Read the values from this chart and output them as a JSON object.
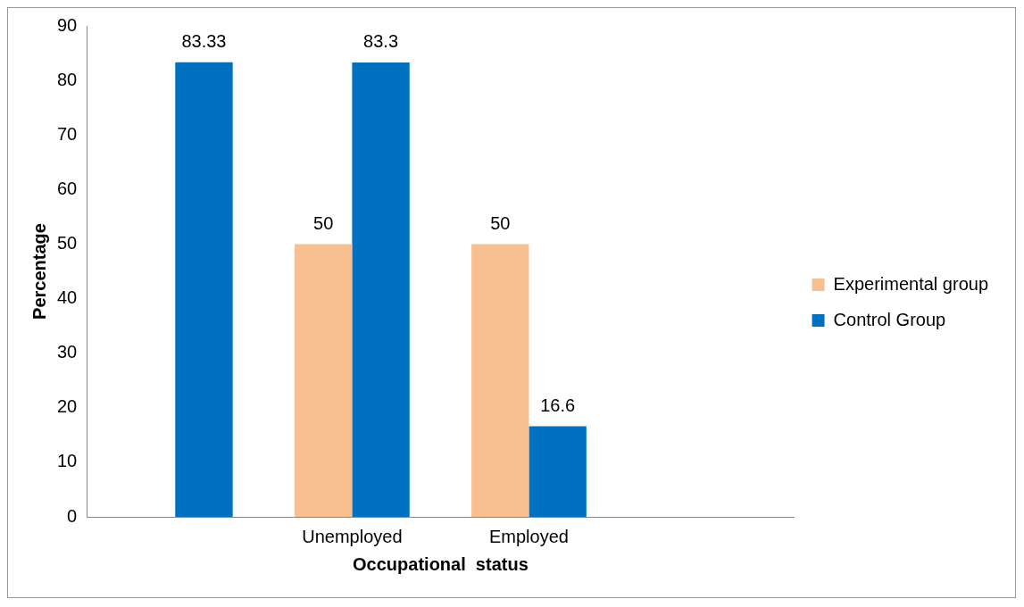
{
  "chart_data": {
    "type": "bar",
    "xlabel": "Occupational  status",
    "ylabel": "Percentage",
    "categories": [
      null,
      "Unemployed",
      "Employed",
      null
    ],
    "series": [
      {
        "name": "Experimental group",
        "color": "#f9c08f",
        "values": [
          null,
          50,
          50,
          null
        ]
      },
      {
        "name": "Control Group",
        "color": "#0070c0",
        "values": [
          83.33,
          83.3,
          16.6,
          null
        ]
      }
    ],
    "ylim": [
      0,
      90
    ],
    "yticks": [
      0,
      10,
      20,
      30,
      40,
      50,
      60,
      70,
      80,
      90
    ],
    "grid": false,
    "legend": "right",
    "data_labels": true
  }
}
